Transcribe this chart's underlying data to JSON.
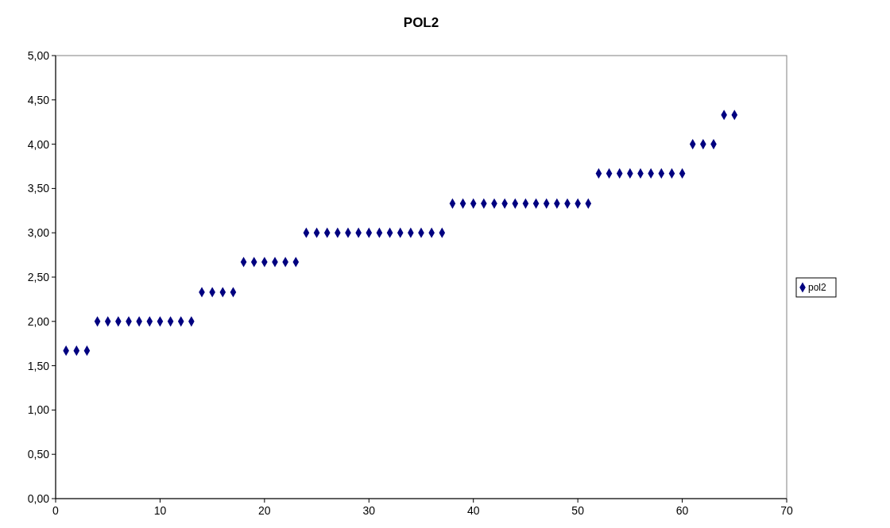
{
  "chart_data": {
    "type": "scatter",
    "title": "POL2",
    "x": [
      1,
      2,
      3,
      4,
      5,
      6,
      7,
      8,
      9,
      10,
      11,
      12,
      13,
      14,
      15,
      16,
      17,
      18,
      19,
      20,
      21,
      22,
      23,
      24,
      25,
      26,
      27,
      28,
      29,
      30,
      31,
      32,
      33,
      34,
      35,
      36,
      37,
      38,
      39,
      40,
      41,
      42,
      43,
      44,
      45,
      46,
      47,
      48,
      49,
      50,
      51,
      52,
      53,
      54,
      55,
      56,
      57,
      58,
      59,
      60,
      61,
      62,
      63,
      64,
      65
    ],
    "series": [
      {
        "name": "pol2",
        "color": "#000080",
        "values": [
          1.67,
          1.67,
          1.67,
          2,
          2,
          2,
          2,
          2,
          2,
          2,
          2,
          2,
          2,
          2.33,
          2.33,
          2.33,
          2.33,
          2.67,
          2.67,
          2.67,
          2.67,
          2.67,
          2.67,
          3,
          3,
          3,
          3,
          3,
          3,
          3,
          3,
          3,
          3,
          3,
          3,
          3,
          3,
          3.33,
          3.33,
          3.33,
          3.33,
          3.33,
          3.33,
          3.33,
          3.33,
          3.33,
          3.33,
          3.33,
          3.33,
          3.33,
          3.33,
          3.67,
          3.67,
          3.67,
          3.67,
          3.67,
          3.67,
          3.67,
          3.67,
          3.67,
          4,
          4,
          4,
          4.33,
          4.33
        ]
      }
    ],
    "xlim": [
      0,
      70
    ],
    "xticks": [
      0,
      10,
      20,
      30,
      40,
      50,
      60,
      70
    ],
    "ylim": [
      0,
      5
    ],
    "yticks": [
      {
        "value": 0,
        "label": "0,00"
      },
      {
        "value": 0.5,
        "label": "0,50"
      },
      {
        "value": 1,
        "label": "1,00"
      },
      {
        "value": 1.5,
        "label": "1,50"
      },
      {
        "value": 2,
        "label": "2,00"
      },
      {
        "value": 2.5,
        "label": "2,50"
      },
      {
        "value": 3,
        "label": "3,00"
      },
      {
        "value": 3.5,
        "label": "3,50"
      },
      {
        "value": 4,
        "label": "4,00"
      },
      {
        "value": 4.5,
        "label": "4,50"
      },
      {
        "value": 5,
        "label": "5,00"
      }
    ],
    "grid": false,
    "legend": "right",
    "marker": "diamond"
  }
}
